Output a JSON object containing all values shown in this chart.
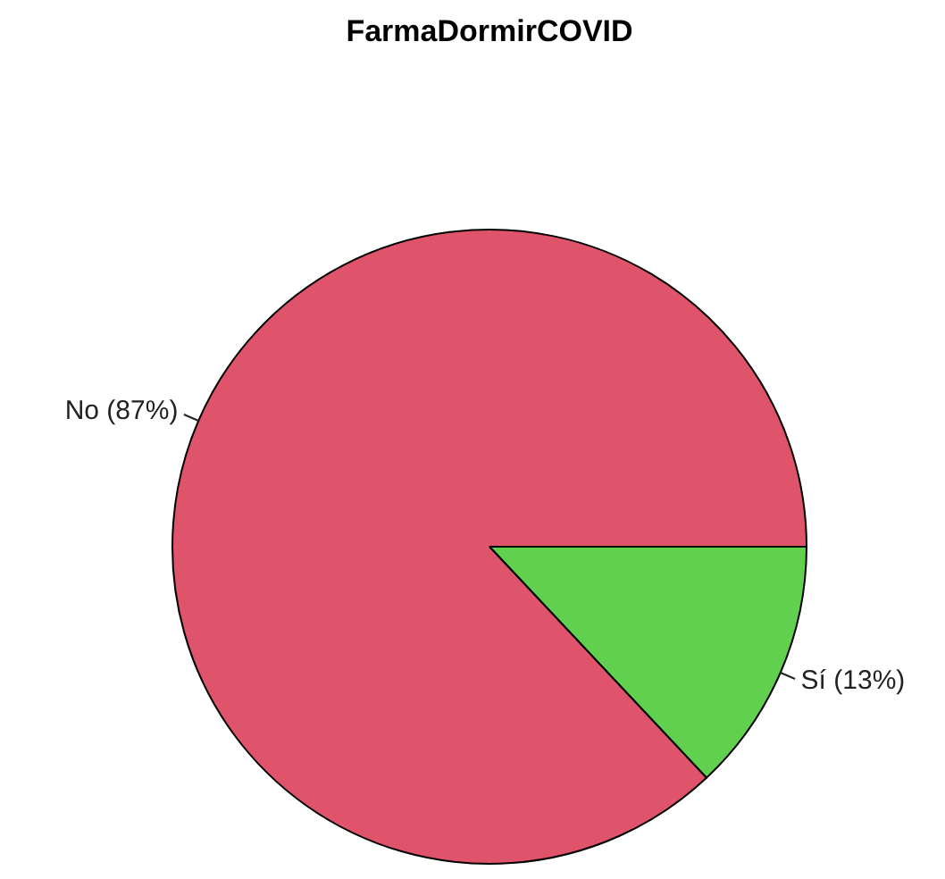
{
  "chart_data": {
    "type": "pie",
    "title": "FarmaDormirCOVID",
    "categories": [
      "No (87%)",
      "Sí (13%)"
    ],
    "values": [
      87,
      13
    ],
    "colors": [
      "#df536b",
      "#61d04f"
    ],
    "legend": false
  }
}
